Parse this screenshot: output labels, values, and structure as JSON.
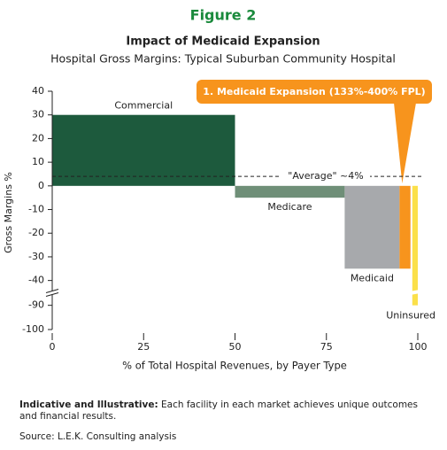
{
  "figure_label": "Figure 2",
  "chart_data": {
    "type": "variable-width-bar",
    "title": "Impact of Medicaid Expansion",
    "subtitle": "Hospital Gross Margins: Typical Suburban Community Hospital",
    "y_label": "Gross Margins %",
    "x_label": "% of Total Hospital Revenues, by Payer Type",
    "bars": [
      {
        "name": "Commercial",
        "color": "#1d5a3d",
        "x": [
          0,
          50
        ],
        "value": 30
      },
      {
        "name": "Medicare",
        "color": "#6f8f78",
        "x": [
          50,
          80
        ],
        "value": -5
      },
      {
        "name": "Medicaid",
        "color": "#a7a9ac",
        "x": [
          80,
          95
        ],
        "value": -35
      },
      {
        "color": "#f7941d",
        "x": [
          95,
          98
        ],
        "value": -35
      },
      {
        "name": "Uninsured",
        "color": "#fbe04a",
        "x": [
          98.5,
          100
        ],
        "value": -90
      }
    ],
    "reference_line": {
      "value": 4,
      "label": "\"Average\" ~4%"
    },
    "callout": {
      "text": "1. Medicaid Expansion (133%-400% FPL)",
      "color": "#f7941d"
    },
    "xlim": [
      0,
      100
    ],
    "xticks": [
      0,
      25,
      50,
      75,
      100
    ],
    "ylim": [
      -100,
      40
    ],
    "ybreak": [
      -85,
      -45
    ],
    "yticks": [
      40,
      30,
      20,
      10,
      0,
      -10,
      -20,
      -30,
      -40,
      -90,
      -100
    ]
  },
  "note": {
    "label": "Indicative and Illustrative:",
    "text": "Each facility in each market achieves unique outcomes and financial results."
  },
  "source": "Source: L.E.K. Consulting analysis"
}
